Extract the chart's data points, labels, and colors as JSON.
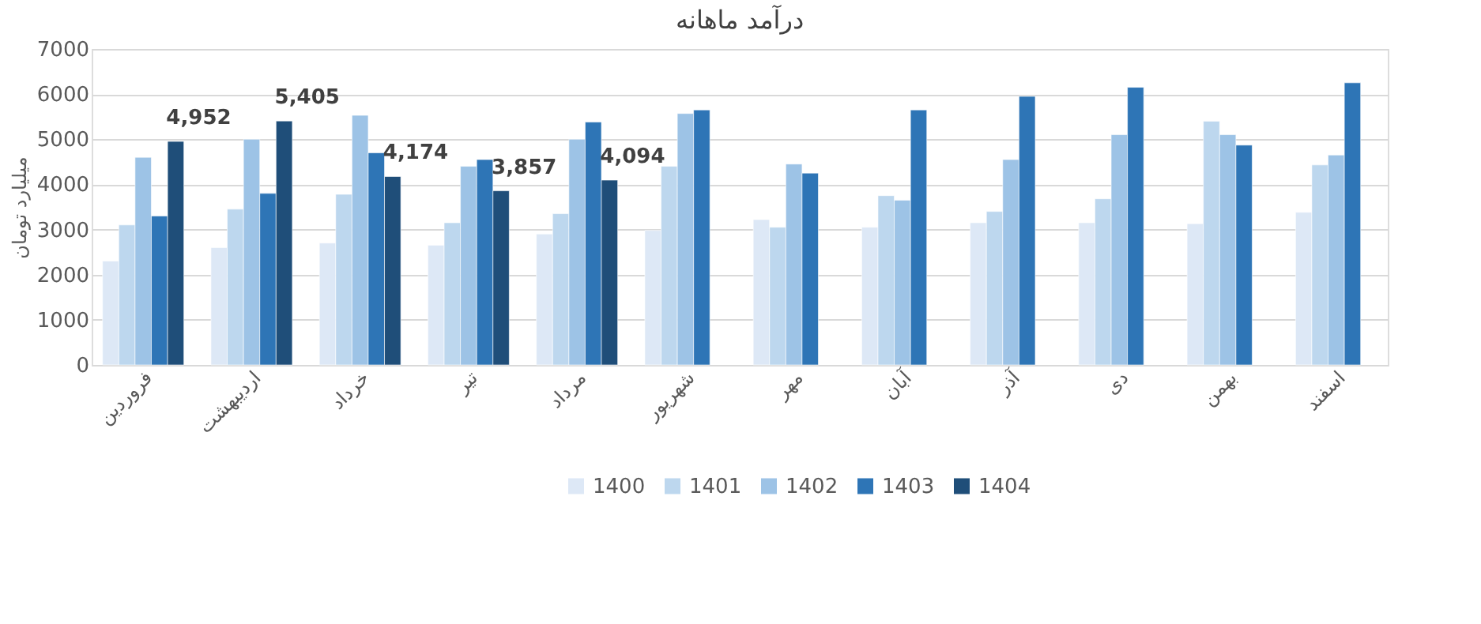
{
  "chart_data": {
    "type": "bar",
    "title": "درآمد ماهانه",
    "ylabel": "میلیارد تومان",
    "categories": [
      "فروردین",
      "اردیبهشت",
      "خرداد",
      "تیر",
      "مرداد",
      "شهریور",
      "مهر",
      "آبان",
      "آذر",
      "دی",
      "بهمن",
      "اسفند"
    ],
    "series": [
      {
        "name": "1400",
        "color": "#dde8f6",
        "values": [
          2300,
          2600,
          2700,
          2650,
          2900,
          2980,
          3220,
          3050,
          3150,
          3150,
          3130,
          3380
        ]
      },
      {
        "name": "1401",
        "color": "#bdd7ee",
        "values": [
          3100,
          3450,
          3780,
          3150,
          3350,
          4400,
          3050,
          3750,
          3400,
          3680,
          5400,
          4430
        ]
      },
      {
        "name": "1402",
        "color": "#9dc3e6",
        "values": [
          4600,
          5000,
          5530,
          4400,
          5000,
          5570,
          4450,
          3650,
          4550,
          5100,
          5100,
          4650
        ]
      },
      {
        "name": "1403",
        "color": "#2e75b6",
        "values": [
          3300,
          3800,
          4700,
          4550,
          5380,
          5650,
          4250,
          5650,
          5950,
          6150,
          4870,
          6250
        ]
      },
      {
        "name": "1404",
        "color": "#1f4e79",
        "values": [
          4952,
          5405,
          4174,
          3857,
          4094,
          null,
          null,
          null,
          null,
          null,
          null,
          null
        ],
        "value_labels": [
          "4,952",
          "5,405",
          "4,174",
          "3,857",
          "4,094",
          null,
          null,
          null,
          null,
          null,
          null,
          null
        ]
      }
    ],
    "ylim": [
      0,
      7000
    ],
    "yticks": [
      0,
      1000,
      2000,
      3000,
      4000,
      5000,
      6000,
      7000
    ],
    "grid": "y",
    "legend": "bottom"
  }
}
